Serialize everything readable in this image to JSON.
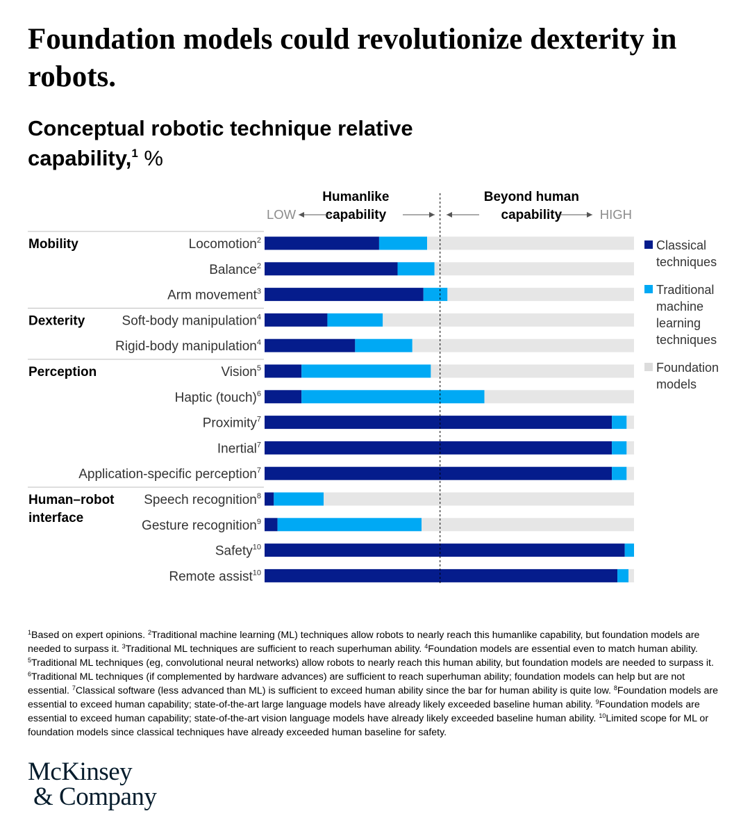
{
  "title": "Foundation models could revolutionize dexterity in robots.",
  "subtitle": {
    "text": "Conceptual robotic technique relative capability,",
    "sup": "1",
    "unit": "%"
  },
  "chart_data": {
    "type": "bar",
    "orientation": "horizontal",
    "stacked": true,
    "xlim": [
      0,
      100
    ],
    "scale_labels": {
      "low": "LOW",
      "high": "HIGH"
    },
    "zones": [
      {
        "line1": "Humanlike",
        "line2": "capability"
      },
      {
        "line1": "Beyond human",
        "line2": "capability"
      }
    ],
    "human_threshold": 47.5,
    "groups": [
      {
        "name": "Mobility",
        "start": 0
      },
      {
        "name": "Dexterity",
        "start": 3
      },
      {
        "name": "Perception",
        "start": 5
      },
      {
        "name": "Human–robot interface",
        "start": 10,
        "lines": [
          "Human–robot",
          "interface"
        ]
      }
    ],
    "categories": [
      {
        "label": "Locomotion",
        "sup": "2"
      },
      {
        "label": "Balance",
        "sup": "2"
      },
      {
        "label": "Arm movement",
        "sup": "3"
      },
      {
        "label": "Soft-body manipulation",
        "sup": "4"
      },
      {
        "label": "Rigid-body manipulation",
        "sup": "4"
      },
      {
        "label": "Vision",
        "sup": "5"
      },
      {
        "label": "Haptic (touch)",
        "sup": "6"
      },
      {
        "label": "Proximity",
        "sup": "7"
      },
      {
        "label": "Inertial",
        "sup": "7"
      },
      {
        "label": "Application-specific perception",
        "sup": "7"
      },
      {
        "label": "Speech recognition",
        "sup": "8"
      },
      {
        "label": "Gesture recognition",
        "sup": "9"
      },
      {
        "label": "Safety",
        "sup": "10"
      },
      {
        "label": "Remote assist",
        "sup": "10"
      }
    ],
    "series": [
      {
        "name": "Classical techniques",
        "color": "#051c8c",
        "values": [
          31,
          36,
          43,
          17,
          24.5,
          10,
          10,
          94,
          94,
          94,
          2.5,
          3.5,
          97.5,
          95.5
        ]
      },
      {
        "name": "Traditional machine learning techniques",
        "color": "#00a9f4",
        "values": [
          13,
          10,
          6.5,
          15,
          15.5,
          35,
          49.5,
          4,
          4,
          4,
          13.5,
          39,
          2.5,
          3
        ]
      },
      {
        "name": "Foundation models",
        "color": "#e6e6e6",
        "values": [
          56,
          54,
          50.5,
          68,
          60,
          55,
          40.5,
          2,
          2,
          2,
          84,
          57.5,
          0,
          1.5
        ]
      }
    ],
    "legend_position": "right"
  },
  "footnotes": [
    {
      "sup": "1",
      "text": "Based on expert opinions."
    },
    {
      "sup": "2",
      "text": "Traditional machine learning (ML) techniques allow robots to nearly reach this humanlike capability, but foundation models are needed to surpass it."
    },
    {
      "sup": "3",
      "text": "Traditional ML techniques are sufficient to reach superhuman ability."
    },
    {
      "sup": "4",
      "text": "Foundation models are essential even to match human ability."
    },
    {
      "sup": "5",
      "text": "Traditional ML techniques (eg, convolutional neural networks) allow robots to nearly reach this human ability, but foundation models are needed to surpass it."
    },
    {
      "sup": "6",
      "text": "Traditional ML techniques (if complemented by hardware advances) are sufficient to reach superhuman ability; foundation models can help but are not essential."
    },
    {
      "sup": "7",
      "text": "Classical software (less advanced than ML) is sufficient to exceed human ability since the bar for human ability is quite low."
    },
    {
      "sup": "8",
      "text": "Foundation models are essential to exceed human capability; state-of-the-art large language models have already likely exceeded baseline human ability."
    },
    {
      "sup": "9",
      "text": "Foundation models are essential to exceed human capability; state-of-the-art vision language models have already likely exceeded baseline human ability."
    },
    {
      "sup": "10",
      "text": "Limited scope for ML or foundation models since classical techniques have already exceeded human baseline for safety."
    }
  ],
  "logo": {
    "line1": "McKinsey",
    "line2": "& Company"
  }
}
